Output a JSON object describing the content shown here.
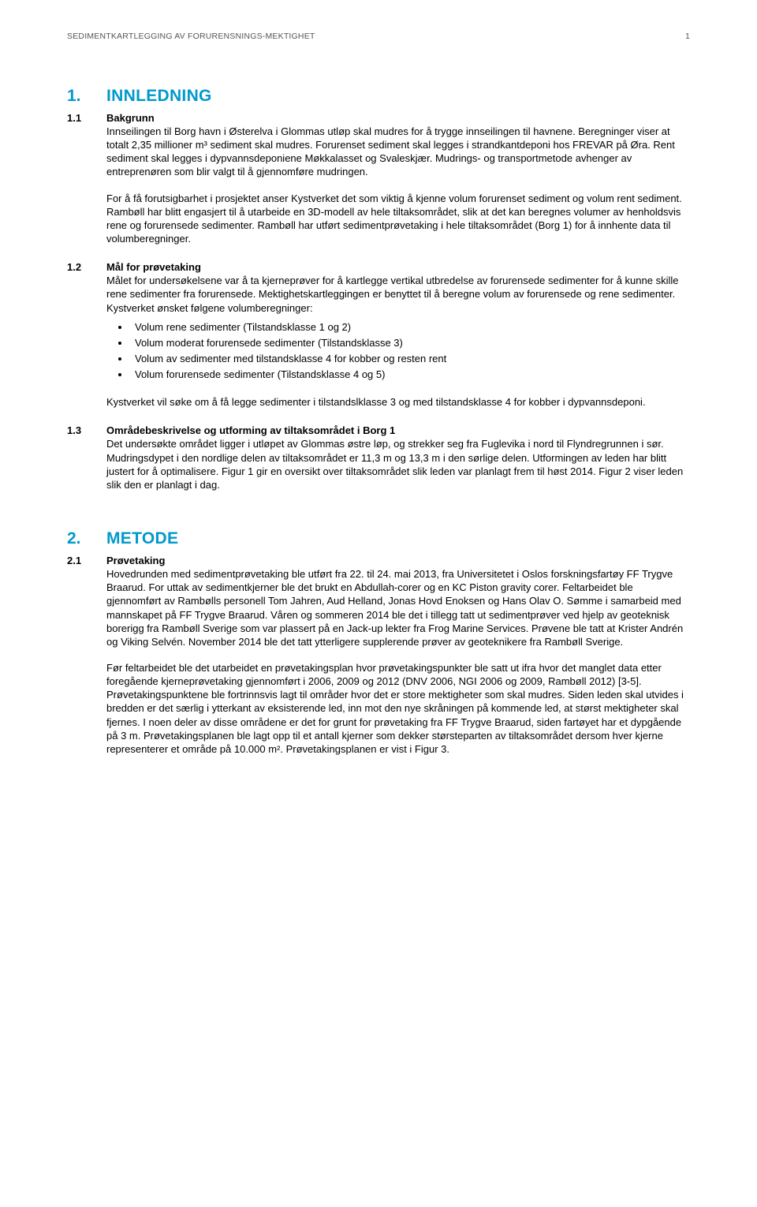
{
  "header": {
    "title": "SEDIMENTKARTLEGGING AV FORURENSNINGS-MEKTIGHET",
    "page_number": "1"
  },
  "colors": {
    "heading": "#0099cc",
    "body_text": "#000000",
    "header_text": "#555555",
    "background": "#ffffff"
  },
  "typography": {
    "body_fontsize_pt": 10,
    "heading_fontsize_pt": 16,
    "font_family": "Verdana"
  },
  "chapters": [
    {
      "number": "1.",
      "title": "INNLEDNING",
      "sections": [
        {
          "number": "1.1",
          "title": "Bakgrunn",
          "paragraphs": [
            "Innseilingen til Borg havn i Østerelva i Glommas utløp skal mudres for å trygge innseilingen til havnene. Beregninger viser at totalt 2,35 millioner m³ sediment skal mudres. Forurenset sediment skal legges i strandkantdeponi hos FREVAR på Øra. Rent sediment skal legges i dypvannsdeponiene Møkkalasset og Svaleskjær. Mudrings- og transportmetode avhenger av entreprenøren som blir valgt til å gjennomføre mudringen.",
            "For å få forutsigbarhet i prosjektet anser Kystverket det som viktig å kjenne volum forurenset sediment og volum rent sediment. Rambøll har blitt engasjert til å utarbeide en 3D-modell av hele tiltaksområdet, slik at det kan beregnes volumer av henholdsvis rene og forurensede sedimenter. Rambøll har utført sedimentprøvetaking i hele tiltaksområdet (Borg 1) for å innhente data til volumberegninger."
          ]
        },
        {
          "number": "1.2",
          "title": "Mål for prøvetaking",
          "paragraphs": [
            "Målet for undersøkelsene var å ta kjerneprøver for å kartlegge vertikal utbredelse av forurensede sedimenter for å kunne skille rene sedimenter fra forurensede. Mektighetskartleggingen er benyttet til å beregne volum av forurensede og rene sedimenter. Kystverket ønsket følgene volumberegninger:"
          ],
          "bullets": [
            "Volum rene sedimenter (Tilstandsklasse 1 og 2)",
            "Volum moderat forurensede sedimenter (Tilstandsklasse 3)",
            "Volum av sedimenter med tilstandsklasse 4 for kobber og resten rent",
            "Volum forurensede sedimenter (Tilstandsklasse 4 og 5)"
          ],
          "after_bullets": [
            "Kystverket vil søke om å få legge sedimenter i tilstandslklasse 3 og med tilstandsklasse 4 for kobber i dypvannsdeponi."
          ]
        },
        {
          "number": "1.3",
          "title": "Områdebeskrivelse og utforming av tiltaksområdet i Borg 1",
          "paragraphs": [
            "Det undersøkte området ligger i utløpet av Glommas østre løp, og strekker seg fra Fuglevika i nord til Flyndregrunnen i sør. Mudringsdypet i den nordlige delen av tiltaksområdet er 11,3 m og 13,3 m i den sørlige delen. Utformingen av leden har blitt justert for å optimalisere. Figur 1 gir en oversikt over tiltaksområdet slik leden var planlagt frem til høst 2014. Figur 2 viser leden slik den er planlagt i dag."
          ]
        }
      ]
    },
    {
      "number": "2.",
      "title": "METODE",
      "sections": [
        {
          "number": "2.1",
          "title": "Prøvetaking",
          "paragraphs": [
            "Hovedrunden med sedimentprøvetaking ble utført fra 22. til 24. mai 2013, fra Universitetet i Oslos forskningsfartøy FF Trygve Braarud. For uttak av sedimentkjerner ble det brukt en Abdullah-corer og en KC Piston gravity corer. Feltarbeidet ble gjennomført av Rambølls personell Tom Jahren, Aud Helland, Jonas Hovd Enoksen og Hans Olav O. Sømme i samarbeid med mannskapet på FF Trygve Braarud. Våren og sommeren 2014 ble det i tillegg tatt ut sedimentprøver ved hjelp av geoteknisk borerigg fra Rambøll Sverige som var plassert på en Jack-up lekter fra Frog Marine Services. Prøvene ble tatt at Krister Andrén og Viking Selvén. November 2014 ble det tatt ytterligere supplerende prøver av geoteknikere fra Rambøll Sverige.",
            "Før feltarbeidet ble det utarbeidet en prøvetakingsplan hvor prøvetakingspunkter ble satt ut ifra hvor det manglet data etter foregående kjerneprøvetaking gjennomført i 2006, 2009 og 2012 (DNV 2006, NGI 2006 og 2009, Rambøll 2012) [3-5]. Prøvetakingspunktene ble fortrinnsvis lagt til områder hvor det er store mektigheter som skal mudres. Siden leden skal utvides i bredden er det særlig i ytterkant av eksisterende led, inn mot den nye skråningen på kommende led, at størst mektigheter skal fjernes. I noen deler av disse områdene er det for grunt for prøvetaking fra FF Trygve Braarud, siden fartøyet har et dypgående på 3 m. Prøvetakingsplanen ble lagt opp til et antall kjerner som dekker størsteparten av tiltaksområdet dersom hver kjerne representerer et område på 10.000 m². Prøvetakingsplanen er vist i Figur 3."
          ]
        }
      ]
    }
  ]
}
